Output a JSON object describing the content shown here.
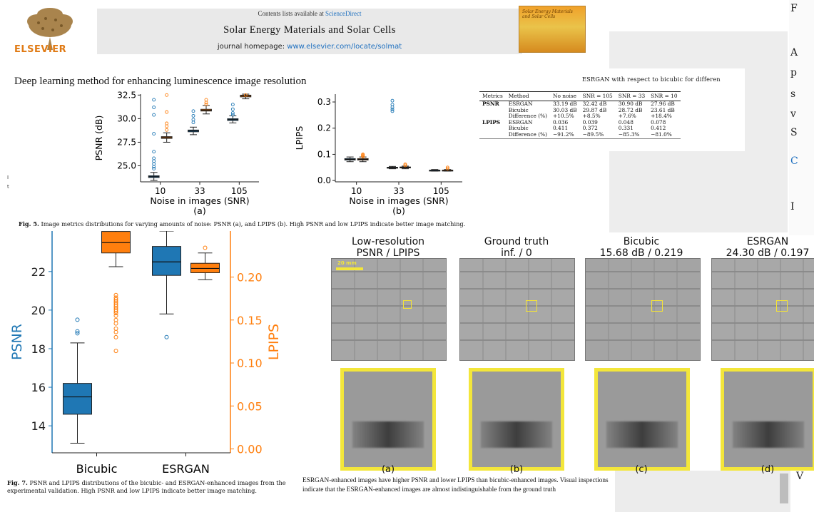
{
  "header": {
    "publisher": "ELSEVIER",
    "contents_prefix": "Contents lists available at ",
    "contents_link": "ScienceDirect",
    "journal_title": "Solar Energy Materials and Solar Cells",
    "homepage_prefix": "journal homepage: ",
    "homepage_url": "www.elsevier.com/locate/solmat",
    "cover_text": "Solar Energy Materials and Solar Cells"
  },
  "paper_title": "Deep learning method for enhancing luminescence image resolution",
  "side_marks": [
    "I",
    "t"
  ],
  "right_column_letters": [
    "F",
    "A",
    "p",
    "s",
    "v",
    "S",
    "C",
    "I",
    "V"
  ],
  "table": {
    "title": "ESRGAN with respect to bicubic for differen",
    "columns": [
      "Metrics",
      "Method",
      "No noise",
      "SNR = 105",
      "SNR = 33",
      "SNR = 10"
    ],
    "rows": [
      [
        "PSNR",
        "ESRGAN",
        "33.19 dB",
        "32.42 dB",
        "30.90 dB",
        "27.96 dB"
      ],
      [
        "",
        "Bicubic",
        "30.03 dB",
        "29.87 dB",
        "28.72 dB",
        "23.61 dB"
      ],
      [
        "",
        "Difference (%)",
        "+10.5%",
        "+8.5%",
        "+7.6%",
        "+18.4%"
      ],
      [
        "LPIPS",
        "ESRGAN",
        "0.036",
        "0.039",
        "0.048",
        "0.078"
      ],
      [
        "",
        "Bicubic",
        "0.411",
        "0.372",
        "0.331",
        "0.412"
      ],
      [
        "",
        "Difference (%)",
        "−91.2%",
        "−89.5%",
        "−85.3%",
        "−81.0%"
      ]
    ]
  },
  "fig5": {
    "caption_label": "Fig. 5.",
    "caption_text": " Image metrics distributions for varying amounts of noise: PSNR (a), and LPIPS (b). High PSNR and low LPIPS indicate better image matching."
  },
  "fig7": {
    "caption_label": "Fig. 7.",
    "caption_text": " PSNR and LPIPS distributions of the bicubic- and ESRGAN-enhanced images from the experimental validation. High PSNR and low LPIPS indicate better image matching."
  },
  "fig6": {
    "panels": [
      {
        "title": "Low-resolution",
        "subtitle": "PSNR / LPIPS",
        "label": "(a)"
      },
      {
        "title": "Ground truth",
        "subtitle": "inf. / 0",
        "label": "(b)"
      },
      {
        "title": "Bicubic",
        "subtitle": "15.68 dB / 0.219",
        "label": "(c)"
      },
      {
        "title": "ESRGAN",
        "subtitle": "24.30 dB / 0.197",
        "label": "(d)"
      }
    ],
    "scale_bar": "20 mm"
  },
  "body_text": "ESRGAN-enhanced images have higher PSNR and lower LPIPS than bicubic-enhanced images. Visual inspections indicate that the ESRGAN-enhanced images are almost indistinguishable from the ground truth",
  "colors": {
    "blue": "#1f77b4",
    "orange": "#ff7f0e",
    "highlight": "#f3e63a",
    "link": "#1d6fbf"
  },
  "chart_data": [
    {
      "id": "fig5a",
      "type": "box",
      "categories": [
        "10",
        "33",
        "105"
      ],
      "xlabel": "Noise in images (SNR)",
      "ylabel": "PSNR (dB)",
      "panel_label": "(a)",
      "yticks": [
        25.0,
        27.5,
        30.0,
        32.5
      ],
      "ylim": [
        23.3,
        32.6
      ],
      "series": [
        {
          "color": "#1f77b4",
          "boxes": [
            {
              "q1": 23.75,
              "median": 23.85,
              "q3": 23.95,
              "wlo": 23.45,
              "whi": 24.3
            },
            {
              "q1": 28.6,
              "median": 28.7,
              "q3": 28.8,
              "wlo": 28.3,
              "whi": 29.1
            },
            {
              "q1": 29.8,
              "median": 29.9,
              "q3": 30.0,
              "wlo": 29.55,
              "whi": 30.3
            }
          ]
        },
        {
          "color": "#ff7f0e",
          "boxes": [
            {
              "q1": 27.9,
              "median": 28.0,
              "q3": 28.1,
              "wlo": 27.5,
              "whi": 28.5
            },
            {
              "q1": 30.8,
              "median": 30.9,
              "q3": 31.0,
              "wlo": 30.5,
              "whi": 31.4
            },
            {
              "q1": 32.3,
              "median": 32.4,
              "q3": 32.5,
              "wlo": 32.1,
              "whi": 32.6
            }
          ]
        }
      ],
      "outliers_blue": [
        [
          0,
          32.0
        ],
        [
          0,
          31.2
        ],
        [
          0,
          30.4
        ],
        [
          0,
          28.4
        ],
        [
          0,
          26.5
        ],
        [
          0,
          25.8
        ],
        [
          0,
          25.5
        ],
        [
          0,
          25.2
        ],
        [
          0,
          24.9
        ],
        [
          0,
          24.7
        ],
        [
          1,
          30.8
        ],
        [
          1,
          30.3
        ],
        [
          1,
          29.9
        ],
        [
          1,
          29.6
        ],
        [
          2,
          31.5
        ],
        [
          2,
          31.0
        ],
        [
          2,
          30.6
        ],
        [
          2,
          30.4
        ]
      ],
      "outliers_orange": [
        [
          0,
          32.5
        ],
        [
          0,
          30.7
        ],
        [
          0,
          29.5
        ],
        [
          0,
          29.2
        ],
        [
          0,
          28.8
        ],
        [
          1,
          32.0
        ],
        [
          1,
          31.7
        ],
        [
          1,
          31.5
        ],
        [
          2,
          32.5
        ]
      ]
    },
    {
      "id": "fig5b",
      "type": "box",
      "categories": [
        "10",
        "33",
        "105"
      ],
      "xlabel": "Noise in images (SNR)",
      "ylabel": "LPIPS",
      "panel_label": "(b)",
      "yticks": [
        0.0,
        0.1,
        0.2,
        0.3
      ],
      "ylim": [
        -0.005,
        0.33
      ],
      "series": [
        {
          "color": "#1f77b4",
          "boxes": [
            {
              "q1": 0.078,
              "median": 0.081,
              "q3": 0.084,
              "wlo": 0.072,
              "whi": 0.09
            },
            {
              "q1": 0.048,
              "median": 0.049,
              "q3": 0.051,
              "wlo": 0.045,
              "whi": 0.054
            },
            {
              "q1": 0.038,
              "median": 0.039,
              "q3": 0.04,
              "wlo": 0.036,
              "whi": 0.042
            }
          ]
        },
        {
          "color": "#ff7f0e",
          "boxes": [
            {
              "q1": 0.078,
              "median": 0.081,
              "q3": 0.084,
              "wlo": 0.072,
              "whi": 0.09
            },
            {
              "q1": 0.048,
              "median": 0.05,
              "q3": 0.052,
              "wlo": 0.045,
              "whi": 0.055
            },
            {
              "q1": 0.038,
              "median": 0.039,
              "q3": 0.04,
              "wlo": 0.036,
              "whi": 0.042
            }
          ]
        }
      ],
      "outliers_blue": [
        [
          1,
          0.305
        ],
        [
          1,
          0.29
        ],
        [
          1,
          0.28
        ],
        [
          1,
          0.272
        ],
        [
          1,
          0.265
        ]
      ],
      "outliers_orange": [
        [
          0,
          0.1
        ],
        [
          0,
          0.097
        ],
        [
          0,
          0.094
        ],
        [
          0,
          0.092
        ],
        [
          1,
          0.062
        ],
        [
          1,
          0.058
        ],
        [
          2,
          0.05
        ],
        [
          2,
          0.046
        ]
      ]
    },
    {
      "id": "fig7",
      "type": "box",
      "categories": [
        "Bicubic",
        "ESRGAN"
      ],
      "ylabel": "PSNR",
      "ylabel_right": "LPIPS",
      "yticks": [
        14,
        16,
        18,
        20,
        22
      ],
      "ylim": [
        12.6,
        24.1
      ],
      "yticks_right": [
        0.0,
        0.05,
        0.1,
        0.15,
        0.2
      ],
      "ylim_right": [
        -0.0045,
        0.2535
      ],
      "series": [
        {
          "name": "PSNR",
          "color": "#1f77b4",
          "boxes": [
            {
              "q1": 14.6,
              "median": 15.5,
              "q3": 16.2,
              "wlo": 13.1,
              "whi": 18.3
            },
            {
              "q1": 21.8,
              "median": 22.5,
              "q3": 23.3,
              "wlo": 19.8,
              "whi": 24.1
            }
          ]
        },
        {
          "name": "LPIPS",
          "color": "#ff7f0e",
          "boxes": [
            {
              "q1": 0.228,
              "median": 0.24,
              "q3": 0.253,
              "wlo": 0.212,
              "whi": 0.255
            },
            {
              "q1": 0.205,
              "median": 0.21,
              "q3": 0.216,
              "wlo": 0.197,
              "whi": 0.228
            }
          ]
        }
      ],
      "outliers_left": [
        [
          0,
          19.5
        ],
        [
          0,
          18.9
        ],
        [
          0,
          18.8
        ],
        [
          1,
          18.6
        ]
      ],
      "outliers_right": [
        [
          0,
          0.179
        ],
        [
          0,
          0.176
        ],
        [
          0,
          0.174
        ],
        [
          0,
          0.172
        ],
        [
          0,
          0.17
        ],
        [
          0,
          0.168
        ],
        [
          0,
          0.166
        ],
        [
          0,
          0.164
        ],
        [
          0,
          0.162
        ],
        [
          0,
          0.16
        ],
        [
          0,
          0.158
        ],
        [
          0,
          0.155
        ],
        [
          0,
          0.15
        ],
        [
          0,
          0.146
        ],
        [
          0,
          0.14
        ],
        [
          0,
          0.136
        ],
        [
          0,
          0.13
        ],
        [
          0,
          0.114
        ],
        [
          1,
          0.234
        ]
      ]
    }
  ]
}
